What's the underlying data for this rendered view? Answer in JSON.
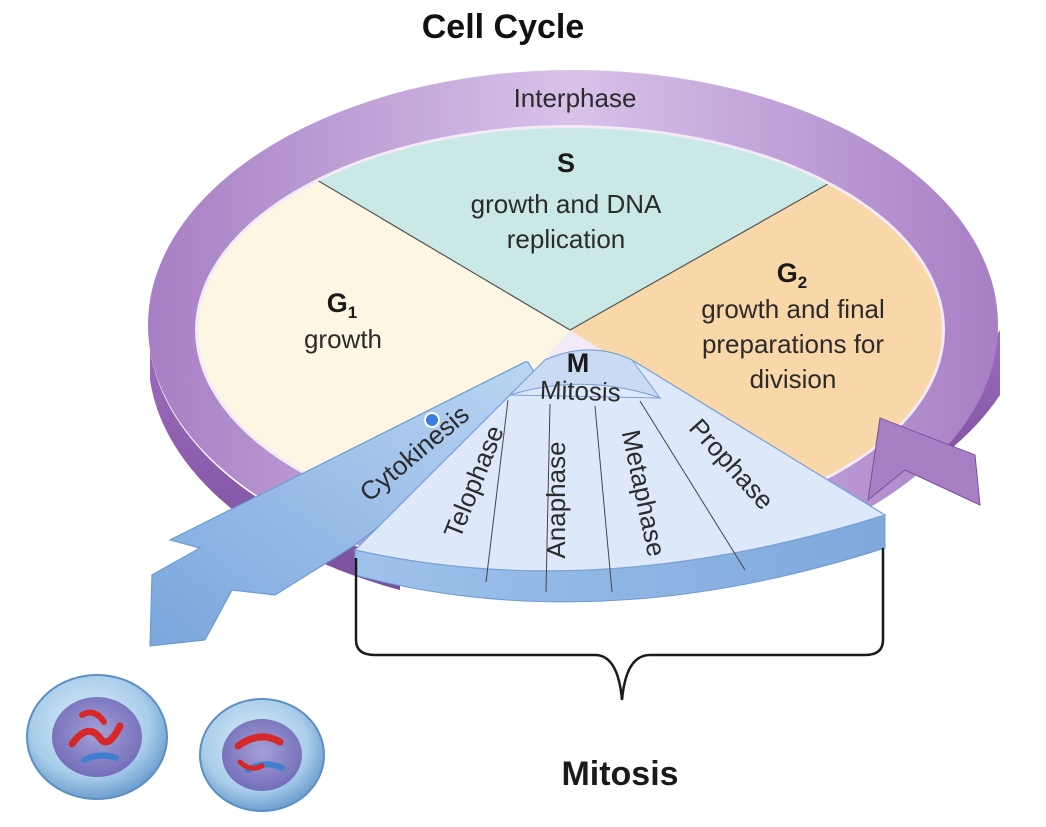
{
  "title": "Cell Cycle",
  "interphase_label": "Interphase",
  "phases": {
    "s": {
      "letter": "S",
      "line1": "growth and DNA",
      "line2": "replication"
    },
    "g1": {
      "letter": "G",
      "subscript": "1",
      "line1": "growth"
    },
    "g2": {
      "letter": "G",
      "subscript": "2",
      "line1": "growth and final",
      "line2": "preparations for",
      "line3": "division"
    },
    "m": {
      "letter": "M",
      "name": "Mitosis"
    }
  },
  "mitosis_stages": [
    "Prophase",
    "Metaphase",
    "Anaphase",
    "Telophase"
  ],
  "cytokinesis_label": "Cytokinesis",
  "bracket_label": "Mitosis",
  "colors": {
    "interphase_ring": "#c8a6dc",
    "interphase_ring_dark": "#9b6fbd",
    "s_phase": "#c9e8e6",
    "g1_phase": "#fdf6e3",
    "g2_phase": "#f9d7a8",
    "mitosis_fan": "#dde9fa",
    "cytokinesis_arrow": "#a9c9ee"
  },
  "icons": [
    "daughter-cell-icon",
    "daughter-cell-icon"
  ]
}
